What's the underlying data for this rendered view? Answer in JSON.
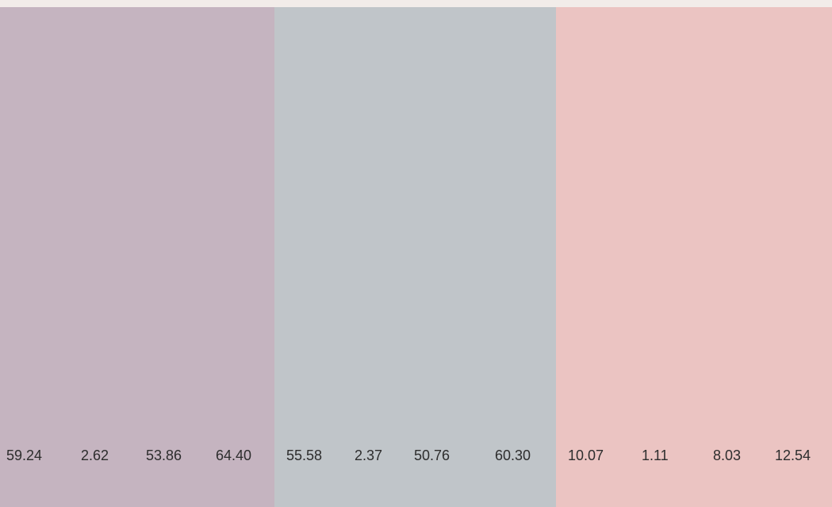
{
  "panels": [
    {
      "color": "#c5b4c0",
      "values": [
        "59.24",
        "2.62",
        "53.86",
        "64.40"
      ]
    },
    {
      "color": "#c0c5c9",
      "values": [
        "55.58",
        "2.37",
        "50.76",
        "60.30"
      ]
    },
    {
      "color": "#ebc4c2",
      "values": [
        "10.07",
        "1.11",
        "8.03",
        "12.54"
      ]
    }
  ]
}
